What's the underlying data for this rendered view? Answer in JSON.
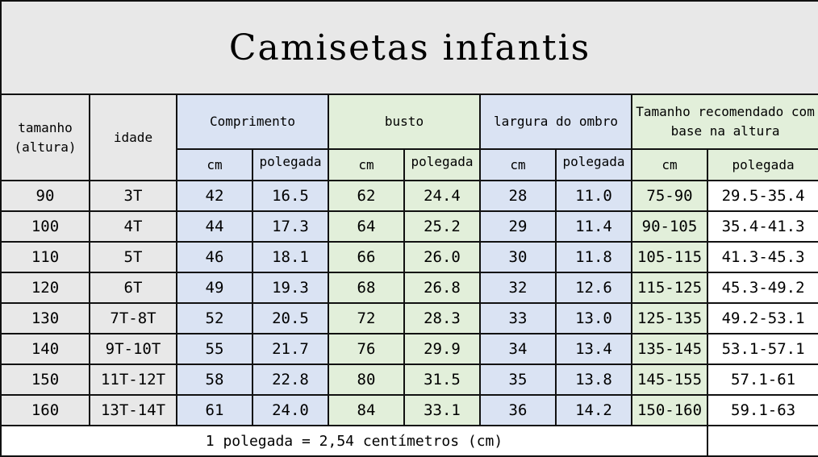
{
  "title": "Camisetas infantis",
  "headers": {
    "size": "tamanho (altura)",
    "age": "idade",
    "length": "Comprimento",
    "bust": "busto",
    "shoulder": "largura do ombro",
    "recommended": "Tamanho recomendado com base na altura",
    "cm": "cm",
    "inch": "polegada"
  },
  "rows": [
    [
      "90",
      "3T",
      "42",
      "16.5",
      "62",
      "24.4",
      "28",
      "11.0",
      "75-90",
      "29.5-35.4"
    ],
    [
      "100",
      "4T",
      "44",
      "17.3",
      "64",
      "25.2",
      "29",
      "11.4",
      "90-105",
      "35.4-41.3"
    ],
    [
      "110",
      "5T",
      "46",
      "18.1",
      "66",
      "26.0",
      "30",
      "11.8",
      "105-115",
      "41.3-45.3"
    ],
    [
      "120",
      "6T",
      "49",
      "19.3",
      "68",
      "26.8",
      "32",
      "12.6",
      "115-125",
      "45.3-49.2"
    ],
    [
      "130",
      "7T-8T",
      "52",
      "20.5",
      "72",
      "28.3",
      "33",
      "13.0",
      "125-135",
      "49.2-53.1"
    ],
    [
      "140",
      "9T-10T",
      "55",
      "21.7",
      "76",
      "29.9",
      "34",
      "13.4",
      "135-145",
      "53.1-57.1"
    ],
    [
      "150",
      "11T-12T",
      "58",
      "22.8",
      "80",
      "31.5",
      "35",
      "13.8",
      "145-155",
      "57.1-61"
    ],
    [
      "160",
      "13T-14T",
      "61",
      "24.0",
      "84",
      "33.1",
      "36",
      "14.2",
      "150-160",
      "59.1-63"
    ]
  ],
  "footer": "1 polegada = 2,54 centímetros (cm)",
  "colors": {
    "gray": "#e8e8e8",
    "blue": "#dae3f3",
    "green": "#e2efda"
  }
}
